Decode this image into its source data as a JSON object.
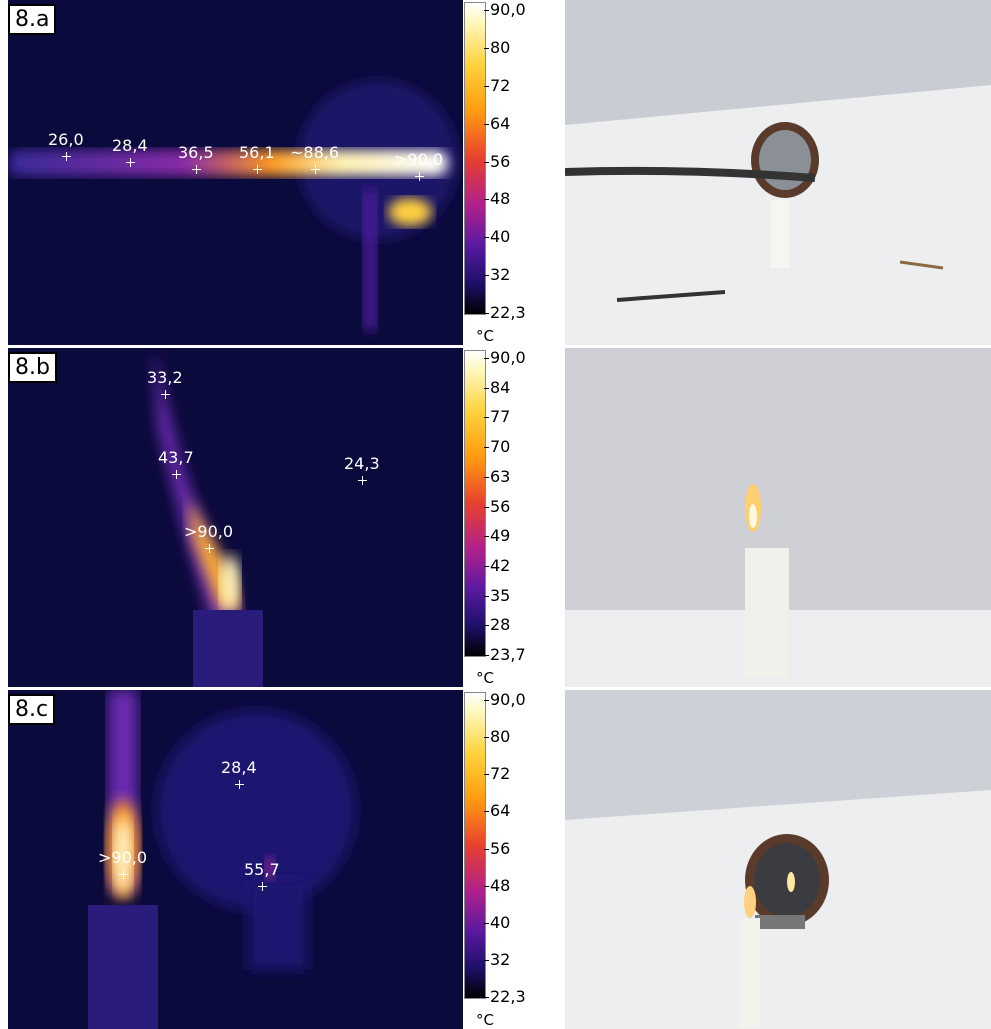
{
  "panels": [
    {
      "label": "8.a",
      "points": [
        "26,0",
        "28,4",
        "36,5",
        "56,1",
        "~88,6",
        ">90,0"
      ],
      "scale": [
        "90,0",
        "80",
        "72",
        "64",
        "56",
        "48",
        "40",
        "32",
        "22,3"
      ],
      "unit": "°C"
    },
    {
      "label": "8.b",
      "points": [
        "33,2",
        "43,7",
        ">90,0",
        "24,3"
      ],
      "scale": [
        "90,0",
        "84",
        "77",
        "70",
        "63",
        "56",
        "49",
        "42",
        "35",
        "28",
        "23,7"
      ],
      "unit": "°C"
    },
    {
      "label": "8.c",
      "points": [
        "28,4",
        ">90,0",
        "55,7"
      ],
      "scale": [
        "90,0",
        "80",
        "72",
        "64",
        "56",
        "48",
        "40",
        "32",
        "22,3"
      ],
      "unit": "°C"
    }
  ]
}
